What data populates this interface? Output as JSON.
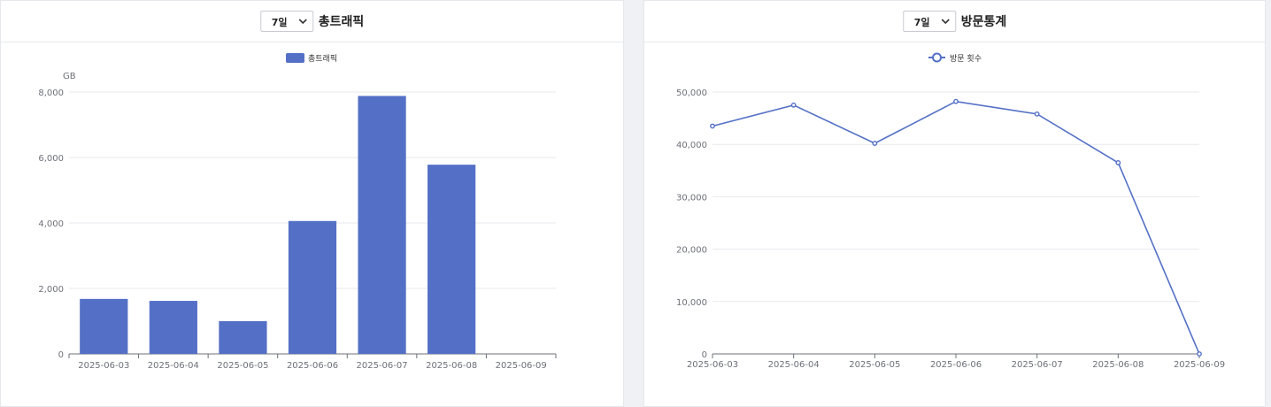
{
  "colors": {
    "series": "#5470c6",
    "grid": "#e9eaee",
    "axis": "#6e7079",
    "tick_text": "#6e7079",
    "title_text": "#222222"
  },
  "left_panel": {
    "period_select": {
      "value": "7일",
      "icon": "chevron-down-icon"
    },
    "title": "총트래픽"
  },
  "right_panel": {
    "period_select": {
      "value": "7일",
      "icon": "chevron-down-icon"
    },
    "title": "방문통계"
  },
  "chart_data": [
    {
      "type": "bar",
      "title": "총트래픽",
      "categories": [
        "2025-06-03",
        "2025-06-04",
        "2025-06-05",
        "2025-06-06",
        "2025-06-07",
        "2025-06-08",
        "2025-06-09"
      ],
      "series": [
        {
          "name": "총트래픽",
          "values": [
            1680,
            1620,
            1000,
            4060,
            7880,
            5780,
            0
          ]
        }
      ],
      "ylabel": "GB",
      "ylim": [
        0,
        8000
      ],
      "yticks": [
        0,
        2000,
        4000,
        6000,
        8000
      ],
      "ytick_labels": [
        "0",
        "2,000",
        "4,000",
        "6,000",
        "8,000"
      ],
      "legend": "top-center",
      "grid": true
    },
    {
      "type": "line",
      "title": "방문통계",
      "categories": [
        "2025-06-03",
        "2025-06-04",
        "2025-06-05",
        "2025-06-06",
        "2025-06-07",
        "2025-06-08",
        "2025-06-09"
      ],
      "series": [
        {
          "name": "방문 횟수",
          "values": [
            43500,
            47500,
            40200,
            48200,
            45800,
            36500,
            0
          ]
        }
      ],
      "ylabel": "",
      "ylim": [
        0,
        50000
      ],
      "yticks": [
        0,
        10000,
        20000,
        30000,
        40000,
        50000
      ],
      "ytick_labels": [
        "0",
        "10,000",
        "20,000",
        "30,000",
        "40,000",
        "50,000"
      ],
      "legend": "top-center",
      "grid": true
    }
  ]
}
